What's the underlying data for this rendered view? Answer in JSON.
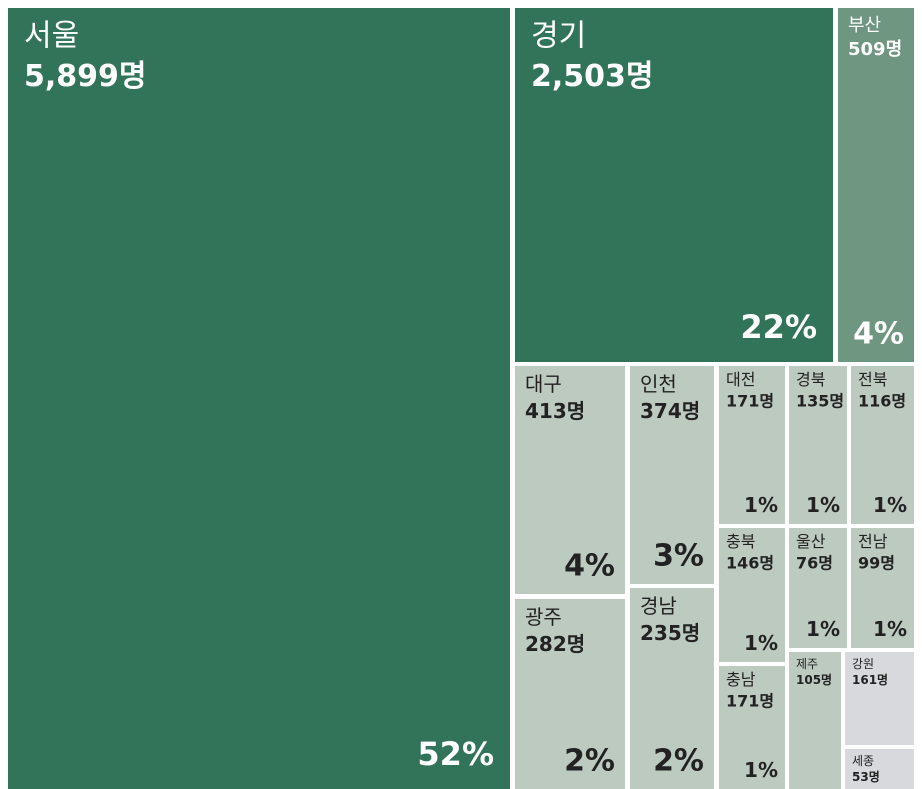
{
  "chart_data": {
    "type": "treemap",
    "categories": [
      "서울",
      "경기",
      "부산",
      "대구",
      "인천",
      "광주",
      "경남",
      "대전",
      "경북",
      "전북",
      "충북",
      "울산",
      "전남",
      "충남",
      "제주",
      "강원",
      "세종"
    ],
    "values": [
      5899,
      2503,
      509,
      413,
      374,
      282,
      235,
      171,
      135,
      116,
      146,
      76,
      99,
      171,
      105,
      161,
      53
    ],
    "value_labels": [
      "5,899명",
      "2,503명",
      "509명",
      "413명",
      "374명",
      "282명",
      "235명",
      "171명",
      "135명",
      "116명",
      "146명",
      "76명",
      "99명",
      "171명",
      "105명",
      "161명",
      "53명"
    ],
    "shares": [
      52,
      22,
      4,
      4,
      3,
      2,
      2,
      1,
      1,
      1,
      1,
      1,
      1,
      1,
      null,
      null,
      null
    ],
    "share_labels": [
      "52%",
      "22%",
      "4%",
      "4%",
      "3%",
      "2%",
      "2%",
      "1%",
      "1%",
      "1%",
      "1%",
      "1%",
      "1%",
      "1%",
      null,
      null,
      null
    ],
    "colors": [
      "#317459",
      "#317459",
      "#6e9681",
      "#bdcac0",
      "#bdcac0",
      "#bdcac0",
      "#bdcac0",
      "#bdcac0",
      "#bdcac0",
      "#bdcac0",
      "#bdcac0",
      "#bdcac0",
      "#bdcac0",
      "#bdcac0",
      "#bdcac0",
      "#d7d9dc",
      "#d7d9dc"
    ]
  }
}
